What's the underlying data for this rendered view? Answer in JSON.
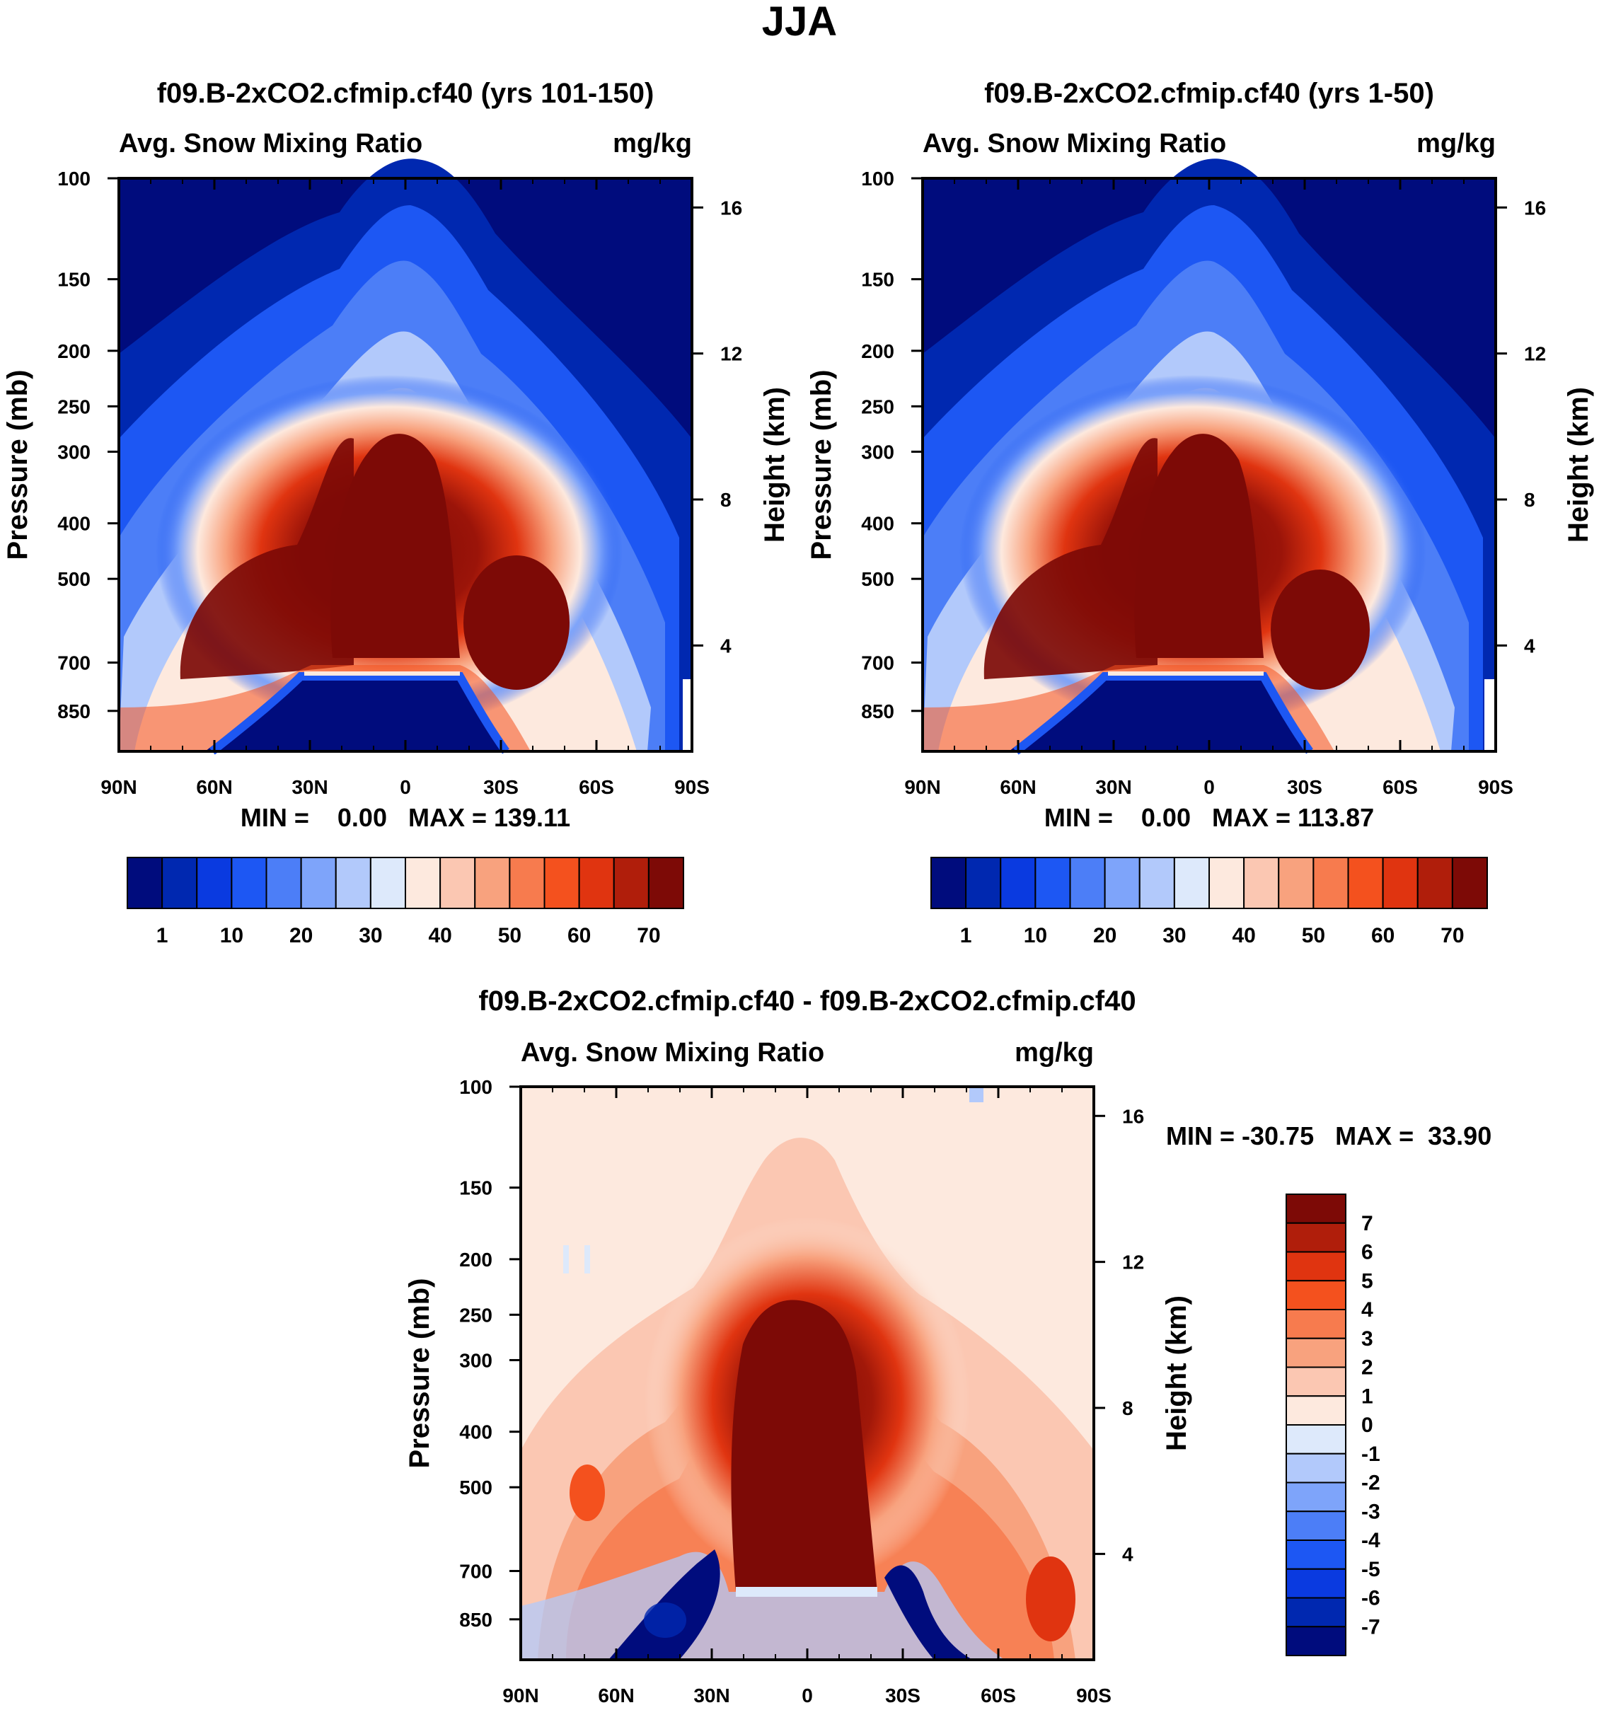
{
  "chart_data": {
    "title": "JJA",
    "panels": [
      {
        "id": "top-left",
        "type": "heatmap",
        "title": "f09.B-2xCO2.cfmip.cf40 (yrs 101-150)",
        "left_label": "Avg. Snow Mixing Ratio",
        "right_label": "mg/kg",
        "ylabel": "Pressure (mb)",
        "ylabel_right": "Height (km)",
        "x_ticks": [
          "90N",
          "60N",
          "30N",
          "0",
          "30S",
          "60S",
          "90S"
        ],
        "y_ticks": [
          "100",
          "150",
          "200",
          "250",
          "300",
          "400",
          "500",
          "700",
          "850"
        ],
        "y_ticks_right": [
          "16",
          "12",
          "8",
          "4"
        ],
        "ylim": [
          1000,
          100
        ],
        "stats": "MIN =    0.00   MAX = 139.11",
        "colorbar": {
          "orientation": "horizontal",
          "colors": [
            "#000c7d",
            "#0028b0",
            "#0a3ae0",
            "#1d57f3",
            "#4c7ef7",
            "#7ea4fa",
            "#b2c9fb",
            "#dde9fb",
            "#fde9de",
            "#fbc7b2",
            "#f8a27e",
            "#f77b4e",
            "#f4511e",
            "#e03410",
            "#b01e0b",
            "#7d0a06"
          ],
          "labels": [
            "1",
            "10",
            "20",
            "30",
            "40",
            "50",
            "60",
            "70"
          ]
        }
      },
      {
        "id": "top-right",
        "type": "heatmap",
        "title": "f09.B-2xCO2.cfmip.cf40 (yrs 1-50)",
        "left_label": "Avg. Snow Mixing Ratio",
        "right_label": "mg/kg",
        "ylabel": "Pressure (mb)",
        "ylabel_right": "Height (km)",
        "x_ticks": [
          "90N",
          "60N",
          "30N",
          "0",
          "30S",
          "60S",
          "90S"
        ],
        "y_ticks": [
          "100",
          "150",
          "200",
          "250",
          "300",
          "400",
          "500",
          "700",
          "850"
        ],
        "y_ticks_right": [
          "16",
          "12",
          "8",
          "4"
        ],
        "ylim": [
          1000,
          100
        ],
        "stats": "MIN =    0.00   MAX = 113.87",
        "colorbar": {
          "orientation": "horizontal",
          "colors": [
            "#000c7d",
            "#0028b0",
            "#0a3ae0",
            "#1d57f3",
            "#4c7ef7",
            "#7ea4fa",
            "#b2c9fb",
            "#dde9fb",
            "#fde9de",
            "#fbc7b2",
            "#f8a27e",
            "#f77b4e",
            "#f4511e",
            "#e03410",
            "#b01e0b",
            "#7d0a06"
          ],
          "labels": [
            "1",
            "10",
            "20",
            "30",
            "40",
            "50",
            "60",
            "70"
          ]
        }
      },
      {
        "id": "bottom",
        "type": "heatmap",
        "title": "f09.B-2xCO2.cfmip.cf40 - f09.B-2xCO2.cfmip.cf40",
        "left_label": "Avg. Snow Mixing Ratio",
        "right_label": "mg/kg",
        "ylabel": "Pressure (mb)",
        "ylabel_right": "Height (km)",
        "x_ticks": [
          "90N",
          "60N",
          "30N",
          "0",
          "30S",
          "60S",
          "90S"
        ],
        "y_ticks": [
          "100",
          "150",
          "200",
          "250",
          "300",
          "400",
          "500",
          "700",
          "850"
        ],
        "y_ticks_right": [
          "16",
          "12",
          "8",
          "4"
        ],
        "ylim": [
          1000,
          100
        ],
        "stats": "MIN = -30.75   MAX =  33.90",
        "colorbar": {
          "orientation": "vertical",
          "colors": [
            "#7d0a06",
            "#b01e0b",
            "#e03410",
            "#f4511e",
            "#f77b4e",
            "#f8a27e",
            "#fbc7b2",
            "#fde9de",
            "#dde9fb",
            "#b2c9fb",
            "#7ea4fa",
            "#4c7ef7",
            "#1d57f3",
            "#0a3ae0",
            "#0028b0",
            "#000c7d"
          ],
          "labels": [
            "7",
            "6",
            "5",
            "4",
            "3",
            "2",
            "1",
            "0",
            "-1",
            "-2",
            "-3",
            "-4",
            "-5",
            "-6",
            "-7"
          ]
        }
      }
    ]
  }
}
